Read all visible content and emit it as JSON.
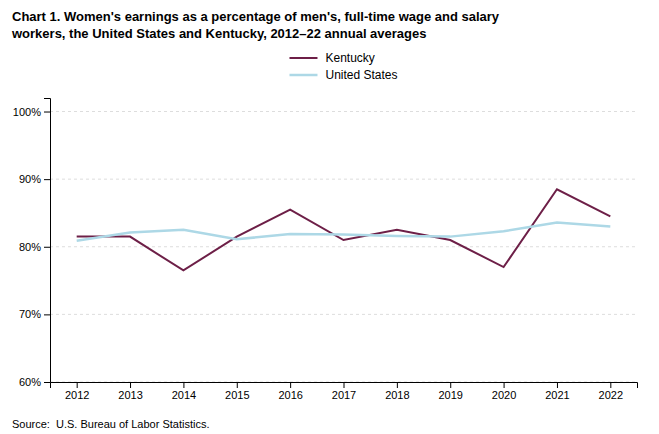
{
  "chart_data": {
    "type": "line",
    "title": "Chart 1. Women's earnings as a percentage of men's, full-time wage and salary\nworkers, the United States and Kentucky, 2012–22 annual averages",
    "annotations": [
      "Source:  U.S. Bureau of Labor Statistics."
    ],
    "x": [
      2012,
      2013,
      2014,
      2015,
      2016,
      2017,
      2018,
      2019,
      2020,
      2021,
      2022
    ],
    "series": [
      {
        "name": "Kentucky",
        "color": "#6d1f47",
        "values": [
          81.5,
          81.5,
          76.5,
          81.5,
          85.5,
          81.0,
          82.5,
          81.0,
          77.0,
          88.5,
          84.5
        ]
      },
      {
        "name": "United States",
        "color": "#add8e6",
        "values": [
          80.9,
          82.1,
          82.5,
          81.1,
          81.9,
          81.8,
          81.6,
          81.5,
          82.3,
          83.6,
          83.0
        ]
      }
    ],
    "xlim": [
      2011.5,
      2022.5
    ],
    "xticks": [
      2012,
      2013,
      2014,
      2015,
      2016,
      2017,
      2018,
      2019,
      2020,
      2021,
      2022
    ],
    "ylim": [
      60,
      102
    ],
    "yticks": [
      {
        "value": 60,
        "label": "60%"
      },
      {
        "value": 70,
        "label": "70%"
      },
      {
        "value": 80,
        "label": "80%"
      },
      {
        "value": 90,
        "label": "90%"
      },
      {
        "value": 100,
        "label": "100%"
      }
    ],
    "grid": true,
    "legend": "top"
  }
}
